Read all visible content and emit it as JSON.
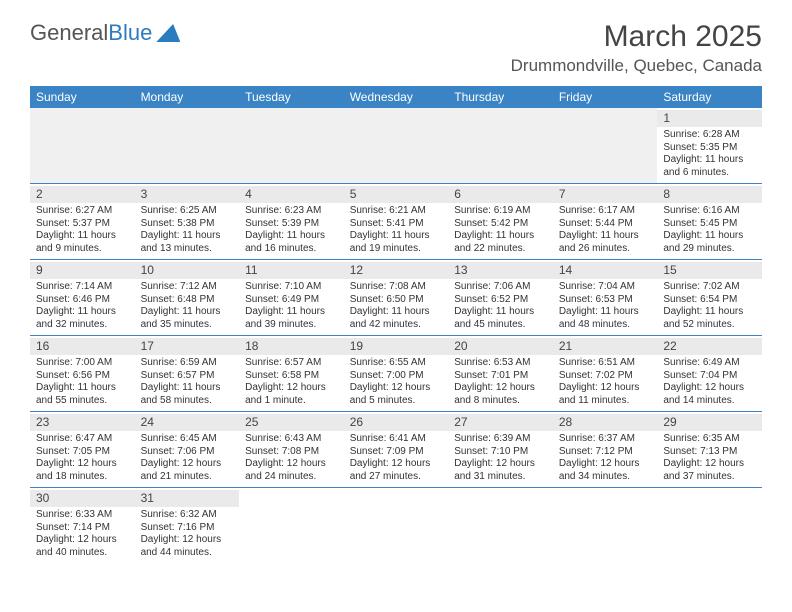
{
  "logo": {
    "word1": "General",
    "word2": "Blue"
  },
  "title": "March 2025",
  "location": "Drummondville, Quebec, Canada",
  "colors": {
    "header_bg": "#3a83c4",
    "accent": "#2b7bbf",
    "day_bg": "#eaeaea",
    "blank_bg": "#f0f0f0"
  },
  "weekdays": [
    "Sunday",
    "Monday",
    "Tuesday",
    "Wednesday",
    "Thursday",
    "Friday",
    "Saturday"
  ],
  "weeks": [
    [
      null,
      null,
      null,
      null,
      null,
      null,
      {
        "n": "1",
        "sr": "Sunrise: 6:28 AM",
        "ss": "Sunset: 5:35 PM",
        "dl": "Daylight: 11 hours and 6 minutes."
      }
    ],
    [
      {
        "n": "2",
        "sr": "Sunrise: 6:27 AM",
        "ss": "Sunset: 5:37 PM",
        "dl": "Daylight: 11 hours and 9 minutes."
      },
      {
        "n": "3",
        "sr": "Sunrise: 6:25 AM",
        "ss": "Sunset: 5:38 PM",
        "dl": "Daylight: 11 hours and 13 minutes."
      },
      {
        "n": "4",
        "sr": "Sunrise: 6:23 AM",
        "ss": "Sunset: 5:39 PM",
        "dl": "Daylight: 11 hours and 16 minutes."
      },
      {
        "n": "5",
        "sr": "Sunrise: 6:21 AM",
        "ss": "Sunset: 5:41 PM",
        "dl": "Daylight: 11 hours and 19 minutes."
      },
      {
        "n": "6",
        "sr": "Sunrise: 6:19 AM",
        "ss": "Sunset: 5:42 PM",
        "dl": "Daylight: 11 hours and 22 minutes."
      },
      {
        "n": "7",
        "sr": "Sunrise: 6:17 AM",
        "ss": "Sunset: 5:44 PM",
        "dl": "Daylight: 11 hours and 26 minutes."
      },
      {
        "n": "8",
        "sr": "Sunrise: 6:16 AM",
        "ss": "Sunset: 5:45 PM",
        "dl": "Daylight: 11 hours and 29 minutes."
      }
    ],
    [
      {
        "n": "9",
        "sr": "Sunrise: 7:14 AM",
        "ss": "Sunset: 6:46 PM",
        "dl": "Daylight: 11 hours and 32 minutes."
      },
      {
        "n": "10",
        "sr": "Sunrise: 7:12 AM",
        "ss": "Sunset: 6:48 PM",
        "dl": "Daylight: 11 hours and 35 minutes."
      },
      {
        "n": "11",
        "sr": "Sunrise: 7:10 AM",
        "ss": "Sunset: 6:49 PM",
        "dl": "Daylight: 11 hours and 39 minutes."
      },
      {
        "n": "12",
        "sr": "Sunrise: 7:08 AM",
        "ss": "Sunset: 6:50 PM",
        "dl": "Daylight: 11 hours and 42 minutes."
      },
      {
        "n": "13",
        "sr": "Sunrise: 7:06 AM",
        "ss": "Sunset: 6:52 PM",
        "dl": "Daylight: 11 hours and 45 minutes."
      },
      {
        "n": "14",
        "sr": "Sunrise: 7:04 AM",
        "ss": "Sunset: 6:53 PM",
        "dl": "Daylight: 11 hours and 48 minutes."
      },
      {
        "n": "15",
        "sr": "Sunrise: 7:02 AM",
        "ss": "Sunset: 6:54 PM",
        "dl": "Daylight: 11 hours and 52 minutes."
      }
    ],
    [
      {
        "n": "16",
        "sr": "Sunrise: 7:00 AM",
        "ss": "Sunset: 6:56 PM",
        "dl": "Daylight: 11 hours and 55 minutes."
      },
      {
        "n": "17",
        "sr": "Sunrise: 6:59 AM",
        "ss": "Sunset: 6:57 PM",
        "dl": "Daylight: 11 hours and 58 minutes."
      },
      {
        "n": "18",
        "sr": "Sunrise: 6:57 AM",
        "ss": "Sunset: 6:58 PM",
        "dl": "Daylight: 12 hours and 1 minute."
      },
      {
        "n": "19",
        "sr": "Sunrise: 6:55 AM",
        "ss": "Sunset: 7:00 PM",
        "dl": "Daylight: 12 hours and 5 minutes."
      },
      {
        "n": "20",
        "sr": "Sunrise: 6:53 AM",
        "ss": "Sunset: 7:01 PM",
        "dl": "Daylight: 12 hours and 8 minutes."
      },
      {
        "n": "21",
        "sr": "Sunrise: 6:51 AM",
        "ss": "Sunset: 7:02 PM",
        "dl": "Daylight: 12 hours and 11 minutes."
      },
      {
        "n": "22",
        "sr": "Sunrise: 6:49 AM",
        "ss": "Sunset: 7:04 PM",
        "dl": "Daylight: 12 hours and 14 minutes."
      }
    ],
    [
      {
        "n": "23",
        "sr": "Sunrise: 6:47 AM",
        "ss": "Sunset: 7:05 PM",
        "dl": "Daylight: 12 hours and 18 minutes."
      },
      {
        "n": "24",
        "sr": "Sunrise: 6:45 AM",
        "ss": "Sunset: 7:06 PM",
        "dl": "Daylight: 12 hours and 21 minutes."
      },
      {
        "n": "25",
        "sr": "Sunrise: 6:43 AM",
        "ss": "Sunset: 7:08 PM",
        "dl": "Daylight: 12 hours and 24 minutes."
      },
      {
        "n": "26",
        "sr": "Sunrise: 6:41 AM",
        "ss": "Sunset: 7:09 PM",
        "dl": "Daylight: 12 hours and 27 minutes."
      },
      {
        "n": "27",
        "sr": "Sunrise: 6:39 AM",
        "ss": "Sunset: 7:10 PM",
        "dl": "Daylight: 12 hours and 31 minutes."
      },
      {
        "n": "28",
        "sr": "Sunrise: 6:37 AM",
        "ss": "Sunset: 7:12 PM",
        "dl": "Daylight: 12 hours and 34 minutes."
      },
      {
        "n": "29",
        "sr": "Sunrise: 6:35 AM",
        "ss": "Sunset: 7:13 PM",
        "dl": "Daylight: 12 hours and 37 minutes."
      }
    ],
    [
      {
        "n": "30",
        "sr": "Sunrise: 6:33 AM",
        "ss": "Sunset: 7:14 PM",
        "dl": "Daylight: 12 hours and 40 minutes."
      },
      {
        "n": "31",
        "sr": "Sunrise: 6:32 AM",
        "ss": "Sunset: 7:16 PM",
        "dl": "Daylight: 12 hours and 44 minutes."
      },
      null,
      null,
      null,
      null,
      null
    ]
  ]
}
